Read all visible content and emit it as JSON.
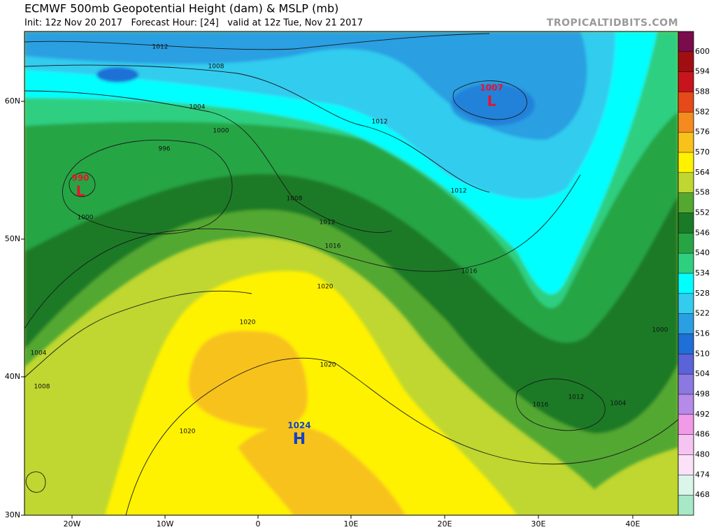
{
  "header": {
    "title": "ECMWF 500mb Geopotential Height (dam) & MSLP (mb)",
    "subtitle": "Init: 12z Nov 20 2017   Forecast Hour: [24]   valid at 12z Tue, Nov 21 2017",
    "source": "TROPICALTIDBITS.COM"
  },
  "colorbar": {
    "levels": [
      600,
      594,
      588,
      582,
      576,
      570,
      564,
      558,
      552,
      546,
      540,
      534,
      528,
      522,
      516,
      510,
      504,
      498,
      492,
      486,
      480,
      474,
      468
    ],
    "colors": [
      "#7a0b4d",
      "#a10e12",
      "#c8141c",
      "#e64a19",
      "#f58a1f",
      "#f8c21b",
      "#fff200",
      "#bfd730",
      "#52a830",
      "#1b7a28",
      "#27a544",
      "#2fcf80",
      "#00ffff",
      "#33ccee",
      "#2a9fe2",
      "#1e6fd6",
      "#5a63d8",
      "#8b78e0",
      "#b58ae8",
      "#f09ae8",
      "#f6c4f2",
      "#fbe2f8",
      "#dcf5ea",
      "#a6e8c8"
    ]
  },
  "axes": {
    "x": [
      "20W",
      "10W",
      "0",
      "10E",
      "20E",
      "30E",
      "40E"
    ],
    "y": [
      "60N",
      "50N",
      "40N",
      "30N"
    ]
  },
  "centers": [
    {
      "value": "990",
      "symbol": "L"
    },
    {
      "value": "1007",
      "symbol": "L"
    },
    {
      "value": "1024",
      "symbol": "H"
    }
  ],
  "isobar_labels": [
    "1012",
    "1008",
    "1004",
    "1000",
    "996",
    "1000",
    "1008",
    "1012",
    "1016",
    "1020",
    "1020",
    "1020",
    "1020",
    "1004",
    "1008",
    "1012",
    "1012",
    "1016",
    "1016",
    "1012",
    "1004",
    "1000"
  ]
}
